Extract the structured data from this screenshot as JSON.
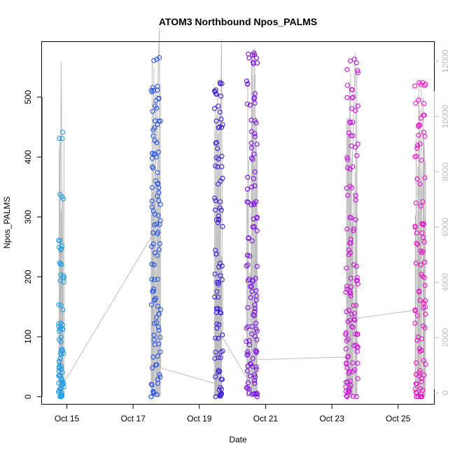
{
  "chart_data": {
    "type": "scatter",
    "title": "ATOM3 Northbound Npos_PALMS",
    "xlabel": "Date",
    "ylabel": "Npos_PALMS",
    "x_ticks": [
      "Oct 15",
      "Oct 17",
      "Oct 19",
      "Oct 21",
      "Oct 23",
      "Oct 25"
    ],
    "y_ticks": [
      0,
      100,
      200,
      300,
      400,
      500
    ],
    "y2_ticks": [
      0,
      2000,
      4000,
      6000,
      8000,
      10000,
      12000
    ],
    "xlim": [
      "2023-10-14 06:00",
      "2023-10-26 02:00"
    ],
    "ylim": [
      -12,
      592
    ],
    "y2lim": [
      -400,
      12700
    ],
    "grid": false,
    "point_style": "open-circle",
    "colors": {
      "flight1": "#1e9de8",
      "flight2": "#2a55ea",
      "flight3": "#3a1ed6",
      "flight4": "#7a10e6",
      "flight5": "#cc10dd",
      "flight6": "#ee10c6",
      "altitude_line": "#bdbdbd"
    },
    "altitude_series": {
      "name": "",
      "axis": "right",
      "x": [
        "2023-10-14 18:00",
        "2023-10-14 20:00",
        "2023-10-14 21:00",
        "2023-10-17 15:00",
        "2023-10-17 19:00",
        "2023-10-17 20:00",
        "2023-10-19 14:00",
        "2023-10-19 16:00",
        "2023-10-19 17:00",
        "2023-10-20 12:00",
        "2023-10-20 16:00",
        "2023-10-20 17:00",
        "2023-10-23 11:00",
        "2023-10-23 17:00",
        "2023-10-23 18:00",
        "2023-10-25 14:00",
        "2023-10-25 19:00",
        "2023-10-25 20:00"
      ],
      "y": [
        150,
        12000,
        300,
        5800,
        13200,
        900,
        300,
        12800,
        2000,
        400,
        12500,
        1200,
        1300,
        12300,
        2700,
        3000,
        8900,
        5500
      ]
    },
    "series": [
      {
        "name": "",
        "color": "#1e9de8",
        "x_range": [
          "2023-10-14 18:00",
          "2023-10-14 22:00"
        ],
        "y": [
          0,
          4,
          8,
          12,
          18,
          25,
          30,
          38,
          45,
          52,
          60,
          70,
          80,
          95,
          110,
          118,
          122,
          150,
          195,
          200,
          220,
          250,
          255,
          335,
          437
        ]
      },
      {
        "name": "",
        "color": "#2a55ea",
        "x_range": [
          "2023-10-17 13:00",
          "2023-10-17 20:00"
        ],
        "y": [
          0,
          8,
          20,
          35,
          50,
          70,
          90,
          105,
          120,
          135,
          150,
          165,
          180,
          200,
          220,
          240,
          255,
          270,
          285,
          300,
          315,
          330,
          345,
          360,
          380,
          400,
          410,
          430,
          450,
          465,
          480,
          495,
          506,
          513,
          565
        ]
      },
      {
        "name": "",
        "color": "#3a1ed6",
        "x_range": [
          "2023-10-19 11:00",
          "2023-10-19 17:00"
        ],
        "y": [
          0,
          5,
          15,
          30,
          45,
          60,
          80,
          100,
          120,
          140,
          150,
          170,
          185,
          200,
          220,
          240,
          290,
          300,
          310,
          330,
          360,
          380,
          400,
          420,
          445,
          460,
          480,
          500,
          512,
          528
        ]
      },
      {
        "name": "",
        "color": "#7a10e6",
        "x_range": [
          "2023-10-20 10:00",
          "2023-10-20 18:00"
        ],
        "y": [
          0,
          5,
          10,
          20,
          30,
          40,
          50,
          60,
          70,
          80,
          90,
          100,
          110,
          120,
          140,
          150,
          165,
          180,
          190,
          200,
          220,
          240,
          260,
          280,
          300,
          320,
          330,
          350,
          370,
          400,
          420,
          440,
          460,
          485,
          503,
          525,
          555,
          565,
          570
        ]
      },
      {
        "name": "",
        "color": "#cc10dd",
        "x_range": [
          "2023-10-23 10:00",
          "2023-10-23 19:00"
        ],
        "y": [
          0,
          5,
          10,
          20,
          30,
          40,
          50,
          60,
          70,
          80,
          90,
          100,
          110,
          120,
          130,
          140,
          150,
          170,
          180,
          190,
          200,
          220,
          240,
          260,
          280,
          300,
          330,
          350,
          380,
          400,
          420,
          440,
          460,
          480,
          500,
          515,
          545,
          560
        ]
      },
      {
        "name": "",
        "color": "#ee10c6",
        "x_range": [
          "2023-10-25 12:00",
          "2023-10-25 20:00"
        ],
        "y": [
          0,
          2,
          5,
          10,
          20,
          35,
          40,
          60,
          80,
          100,
          120,
          140,
          150,
          160,
          180,
          200,
          220,
          240,
          260,
          270,
          285,
          290,
          320,
          360,
          400,
          420,
          440,
          450,
          470,
          495,
          520,
          525
        ]
      }
    ]
  }
}
